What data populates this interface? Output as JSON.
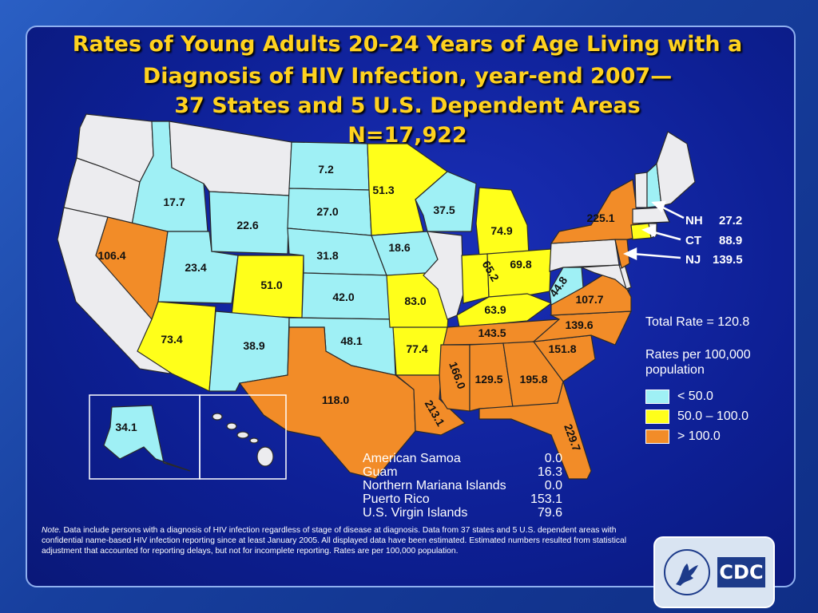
{
  "title": {
    "line1": "Rates of Young Adults 20–24 Years of Age Living with a",
    "line2": "Diagnosis of HIV Infection, year-end 2007—",
    "line3": "37 States and 5 U.S. Dependent Areas",
    "line4": "N=17,922"
  },
  "colors": {
    "low": "#9ff0f5",
    "mid": "#ffff1a",
    "high": "#f28c28",
    "no_data": "#ececef",
    "title": "#ffd21f"
  },
  "states": {
    "WA": {
      "category": "no_data"
    },
    "OR": {
      "category": "no_data"
    },
    "CA": {
      "category": "no_data"
    },
    "MT": {
      "category": "no_data"
    },
    "ID": {
      "category": "low",
      "rate": "17.7"
    },
    "NV": {
      "category": "high",
      "rate": "106.4"
    },
    "UT": {
      "category": "low",
      "rate": "23.4"
    },
    "AZ": {
      "category": "mid",
      "rate": "73.4"
    },
    "WY": {
      "category": "low",
      "rate": "22.6"
    },
    "CO": {
      "category": "mid",
      "rate": "51.0"
    },
    "NM": {
      "category": "low",
      "rate": "38.9"
    },
    "ND": {
      "category": "low",
      "rate": "7.2"
    },
    "SD": {
      "category": "low",
      "rate": "27.0"
    },
    "NE": {
      "category": "low",
      "rate": "31.8"
    },
    "KS": {
      "category": "low",
      "rate": "42.0"
    },
    "OK": {
      "category": "low",
      "rate": "48.1"
    },
    "TX": {
      "category": "high",
      "rate": "118.0"
    },
    "MN": {
      "category": "mid",
      "rate": "51.3"
    },
    "IA": {
      "category": "low",
      "rate": "18.6"
    },
    "MO": {
      "category": "mid",
      "rate": "83.0"
    },
    "AR": {
      "category": "mid",
      "rate": "77.4"
    },
    "LA": {
      "category": "high",
      "rate": "213.1"
    },
    "WI": {
      "category": "low",
      "rate": "37.5"
    },
    "IL": {
      "category": "no_data"
    },
    "MI": {
      "category": "mid",
      "rate": "74.9"
    },
    "IN": {
      "category": "mid",
      "rate": "65.2"
    },
    "OH": {
      "category": "mid",
      "rate": "69.8"
    },
    "KY": {
      "category": "mid",
      "rate": "63.9"
    },
    "TN": {
      "category": "high",
      "rate": "143.5"
    },
    "MS": {
      "category": "high",
      "rate": "166.0"
    },
    "AL": {
      "category": "high",
      "rate": "129.5"
    },
    "GA": {
      "category": "high",
      "rate": "195.8"
    },
    "FL": {
      "category": "high",
      "rate": "229.7"
    },
    "SC": {
      "category": "high",
      "rate": "151.8"
    },
    "NC": {
      "category": "high",
      "rate": "139.6"
    },
    "VA": {
      "category": "high",
      "rate": "107.7"
    },
    "WV": {
      "category": "low",
      "rate": "44.8"
    },
    "PA": {
      "category": "no_data"
    },
    "NY": {
      "category": "high",
      "rate": "225.1"
    },
    "MD": {
      "category": "no_data"
    },
    "DE": {
      "category": "no_data"
    },
    "NJ": {
      "category": "high"
    },
    "CT": {
      "category": "mid"
    },
    "RI": {
      "category": "no_data"
    },
    "MA": {
      "category": "no_data"
    },
    "VT": {
      "category": "no_data"
    },
    "NH": {
      "category": "low"
    },
    "ME": {
      "category": "no_data"
    },
    "AK": {
      "category": "low",
      "rate": "34.1"
    },
    "HI": {
      "category": "no_data"
    }
  },
  "callouts": [
    {
      "state": "NH",
      "rate": "27.2"
    },
    {
      "state": "CT",
      "rate": "88.9"
    },
    {
      "state": "NJ",
      "rate": "139.5"
    }
  ],
  "total_rate": "Total Rate = 120.8",
  "rate_note_line1": "Rates  per 100,000",
  "rate_note_line2": "population",
  "legend": [
    {
      "key": "low",
      "label": "< 50.0"
    },
    {
      "key": "mid",
      "label": "50.0 – 100.0"
    },
    {
      "key": "high",
      "label": "> 100.0"
    }
  ],
  "territories": [
    {
      "name": "American Samoa",
      "value": "0.0"
    },
    {
      "name": "Guam",
      "value": "16.3"
    },
    {
      "name": "Northern Mariana Islands",
      "value": "0.0"
    },
    {
      "name": "Puerto Rico",
      "value": "153.1"
    },
    {
      "name": "U.S. Virgin Islands",
      "value": "79.6"
    }
  ],
  "note": {
    "label": "Note.",
    "text": "Data include persons with a diagnosis of HIV infection regardless of stage of  disease at diagnosis.  Data from 37 states and 5 U.S. dependent areas with confidential name-based HIV infection reporting since at least January 2005.  All displayed data have been estimated. Estimated numbers resulted from statistical adjustment that accounted for reporting  delays, but not for incomplete reporting. Rates are per 100,000  population."
  },
  "logo": {
    "text": "CDC"
  }
}
